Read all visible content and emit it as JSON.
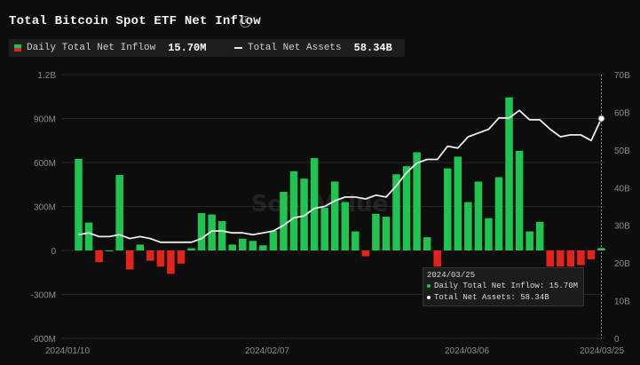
{
  "header": {
    "title": "Total Bitcoin Spot ETF Net Inflow",
    "info_icon": "info-icon"
  },
  "legend": {
    "inflow_label": "Daily Total Net Inflow",
    "inflow_value": "15.70M",
    "assets_label": "Total Net Assets",
    "assets_value": "58.34B"
  },
  "colors": {
    "positive": "#1fc451",
    "negative": "#e3241a",
    "line": "#ececec",
    "grid": "#262626",
    "axis_text": "#8c8c8c",
    "background": "#0d0d0d"
  },
  "watermark": "SoSoValue",
  "tooltip": {
    "date": "2024/03/25",
    "inflow_text": "Daily Total Net Inflow: 15.70M",
    "assets_text": "Total Net Assets: 58.34B"
  },
  "chart_data": {
    "type": "bar",
    "title": "Total Bitcoin Spot ETF Net Inflow",
    "x_labels": [
      "2024/01/10",
      "2024/02/07",
      "2024/03/06",
      "2024/03/25"
    ],
    "y_left": {
      "label": "Daily Total Net Inflow",
      "ticks": [
        "1.2B",
        "900M",
        "600M",
        "300M",
        "0",
        "-300M",
        "-600M"
      ],
      "min": -600,
      "max": 1200,
      "unit": "M"
    },
    "y_right": {
      "label": "Total Net Assets",
      "ticks": [
        "0",
        "10B",
        "20B",
        "30B",
        "40B",
        "50B",
        "60B",
        "70B"
      ],
      "min": 0,
      "max": 70,
      "unit": "B"
    },
    "series": [
      {
        "name": "Daily Total Net Inflow",
        "type": "bar",
        "values": [
          625,
          190,
          -80,
          0,
          515,
          -130,
          40,
          -70,
          -110,
          -160,
          -90,
          15,
          255,
          245,
          200,
          40,
          80,
          65,
          35,
          135,
          400,
          540,
          490,
          630,
          290,
          470,
          330,
          130,
          -40,
          250,
          230,
          520,
          575,
          670,
          90,
          -110,
          560,
          640,
          330,
          470,
          220,
          500,
          1045,
          680,
          130,
          195,
          -110,
          -110,
          -110,
          -100,
          -60,
          16
        ]
      },
      {
        "name": "Total Net Assets",
        "type": "line",
        "values": [
          27.5,
          28,
          27,
          27,
          27.5,
          26.5,
          27,
          26.5,
          25.5,
          25.5,
          25.5,
          25.5,
          26.5,
          28.5,
          28.5,
          28,
          28,
          27.5,
          28,
          28.5,
          30,
          32,
          32.5,
          34.5,
          35,
          36.5,
          37.5,
          37.5,
          37,
          38,
          37.5,
          40.5,
          44,
          46.5,
          47.5,
          47.5,
          51,
          50.5,
          53.5,
          54.5,
          55.5,
          58.5,
          58.5,
          60.5,
          58,
          58,
          55.5,
          53.5,
          54,
          54,
          52.5,
          58.34
        ]
      }
    ]
  }
}
